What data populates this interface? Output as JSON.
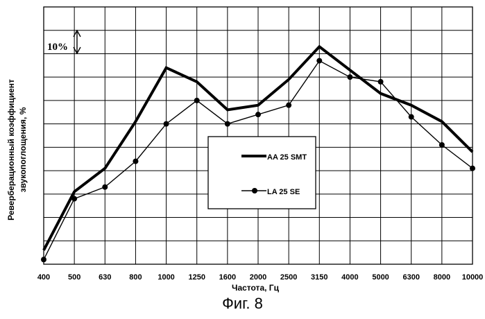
{
  "chart_data": {
    "type": "line",
    "title": "",
    "xlabel": "Частота, Гц",
    "ylabel": [
      "Реверберационный коэффициент",
      "звукопоглощения, %"
    ],
    "x": [
      "400",
      "500",
      "630",
      "800",
      "1000",
      "1250",
      "1600",
      "2000",
      "2500",
      "3150",
      "4000",
      "5000",
      "6300",
      "8000",
      "10000"
    ],
    "ylim": [
      0,
      11
    ],
    "grid": true,
    "legend_position": "center-right",
    "series": [
      {
        "name": "AA 25 SMT",
        "color": "#000000",
        "marker": "none",
        "style": "thick",
        "values": [
          0.6,
          3.1,
          4.1,
          6.1,
          8.4,
          7.8,
          6.6,
          6.8,
          7.9,
          9.3,
          8.3,
          7.3,
          6.8,
          6.1,
          4.8
        ]
      },
      {
        "name": "LA 25 SE",
        "color": "#000000",
        "marker": "circle",
        "style": "thin",
        "values": [
          0.2,
          2.8,
          3.3,
          4.4,
          6.0,
          7.0,
          6.0,
          6.4,
          6.8,
          8.7,
          8.0,
          7.8,
          6.3,
          5.1,
          4.1
        ]
      }
    ],
    "annotation": {
      "text": "10%"
    }
  },
  "figure_caption": "Фиг. 8"
}
